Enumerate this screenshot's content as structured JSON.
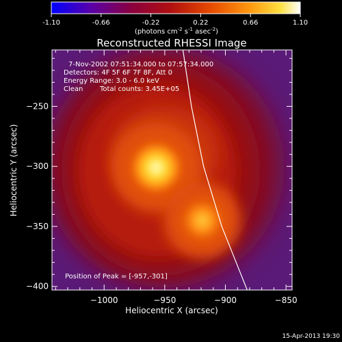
{
  "colorbar": {
    "ticks": [
      "-1.10",
      "-0.66",
      "-0.22",
      "0.22",
      "0.66",
      "1.10"
    ],
    "range": [
      -1.1,
      1.1
    ],
    "unit_label": "(photons cm",
    "unit_label_sup1": "-2",
    "unit_label_mid": " s",
    "unit_label_sup2": "-1",
    "unit_label_mid2": " asec",
    "unit_label_sup3": "-2",
    "unit_label_end": ")"
  },
  "info": {
    "line1": "7-Nov-2002 07:51:34.000 to 07:57:34.000",
    "line2": "Detectors: 4F 5F 6F 7F 8F, Att 0",
    "line3": "Energy Range: 3.0 - 6.0 keV",
    "line4_a": "Clean",
    "line4_b": "Total counts: 3.45E+05",
    "peak": "Position of Peak = [-957,-301]"
  },
  "footer": {
    "date": "15-Apr-2013 19:30"
  },
  "chart_data": {
    "type": "heatmap",
    "title": "Reconstructed RHESSI Image",
    "xlabel": "Heliocentric X (arcsec)",
    "ylabel": "Heliocentric Y (arcsec)",
    "xlim": [
      -1043,
      -845
    ],
    "ylim": [
      -403,
      -203
    ],
    "x_ticks": [
      -1000,
      -950,
      -900,
      -850
    ],
    "y_ticks": [
      -250,
      -300,
      -350,
      -400
    ],
    "colormap": "hot",
    "sources": [
      {
        "x": -957,
        "y": -301,
        "peak": 1.0
      },
      {
        "x": -919,
        "y": -345,
        "peak": 0.78
      }
    ],
    "limb_curve": [
      [
        -935,
        -203
      ],
      [
        -928,
        -250
      ],
      [
        -918,
        -300
      ],
      [
        -903,
        -350
      ],
      [
        -882,
        -403
      ]
    ]
  }
}
